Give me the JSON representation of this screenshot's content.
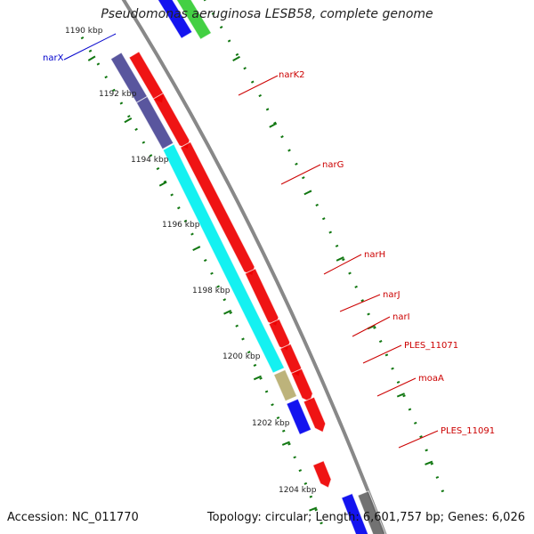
{
  "title": "Pseudomonas aeruginosa LESB58, complete genome",
  "footer": {
    "accession": "Accession: NC_011770",
    "summary": "Topology: circular; Length: 6,601,757 bp; Genes: 6,026"
  },
  "colors": {
    "red": "#ee0000",
    "blue": "#0000ee",
    "slate": "#4b4896",
    "cyan": "#00f0f0",
    "khaki": "#b7ad70",
    "green": "#33cc33",
    "gray": "#666666",
    "backbone": "#888888",
    "tick": "#117711",
    "label_red": "#cc0000",
    "label_blue": "#0000cc"
  },
  "kbp_labels": [
    "1190 kbp",
    "1192 kbp",
    "1194 kbp",
    "1196 kbp",
    "1198 kbp",
    "1200 kbp",
    "1202 kbp",
    "1204 kbp"
  ],
  "genes": [
    {
      "name": "narX",
      "color": "blue"
    },
    {
      "name": "narK2",
      "color": "red"
    },
    {
      "name": "narG",
      "color": "red"
    },
    {
      "name": "narH",
      "color": "red"
    },
    {
      "name": "narJ",
      "color": "red"
    },
    {
      "name": "narI",
      "color": "red"
    },
    {
      "name": "PLES_11071",
      "color": "red"
    },
    {
      "name": "moaA",
      "color": "red"
    },
    {
      "name": "PLES_11091",
      "color": "red"
    }
  ]
}
